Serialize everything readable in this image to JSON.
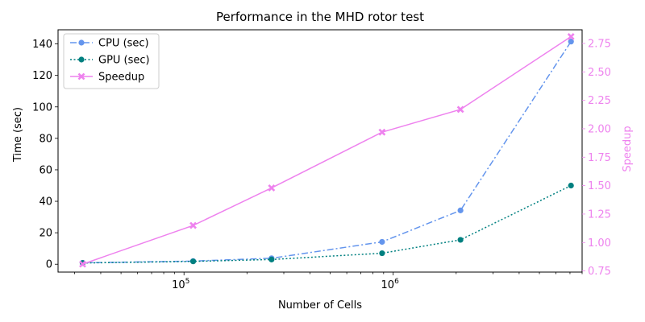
{
  "chart_data": {
    "type": "line",
    "title": "Performance in the MHD rotor test",
    "xlabel": "Number of Cells",
    "ylabel": "Time (sec)",
    "y2label": "Speedup",
    "xscale": "log",
    "xlim": [
      25000,
      8000000
    ],
    "ylim": [
      -5,
      149
    ],
    "y2lim": [
      0.74,
      2.87
    ],
    "x": [
      32768,
      110592,
      262144,
      884736,
      2097152,
      7077888
    ],
    "x_tick_labels": [
      "10^5",
      "10^6"
    ],
    "x_ticks": [
      100000,
      1000000
    ],
    "y_ticks": [
      0,
      20,
      40,
      60,
      80,
      100,
      120,
      140
    ],
    "y2_ticks": [
      0.75,
      1.0,
      1.25,
      1.5,
      1.75,
      2.0,
      2.25,
      2.5,
      2.75
    ],
    "series": [
      {
        "name": "CPU (sec)",
        "axis": "left",
        "color": "#6495ed",
        "style": "dashdot",
        "marker": "circle",
        "values": [
          0.9,
          2.0,
          3.8,
          14.2,
          34.2,
          141.5
        ]
      },
      {
        "name": "GPU (sec)",
        "axis": "left",
        "color": "#008080",
        "style": "dotted",
        "marker": "circle",
        "values": [
          0.8,
          1.8,
          3.0,
          7.0,
          15.5,
          50.0
        ]
      },
      {
        "name": "Speedup",
        "axis": "right",
        "color": "#ee82ee",
        "style": "solid",
        "marker": "x",
        "values": [
          0.81,
          1.15,
          1.48,
          1.97,
          2.17,
          2.81
        ]
      }
    ],
    "legend_position": "top-left",
    "grid": false
  }
}
